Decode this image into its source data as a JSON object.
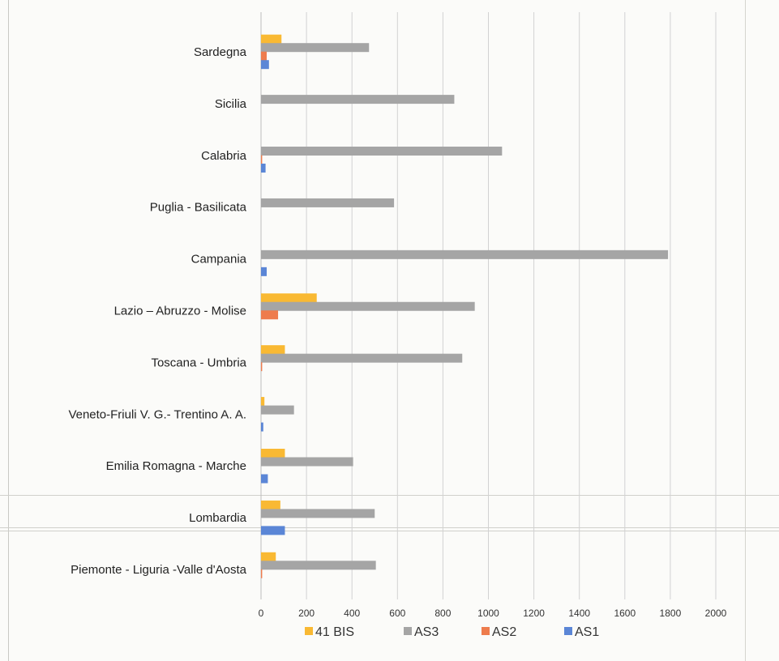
{
  "chart_data": {
    "type": "bar",
    "orientation": "horizontal",
    "categories": [
      "Sardegna",
      "Sicilia",
      "Calabria",
      "Puglia - Basilicata",
      "Campania",
      "Lazio – Abruzzo - Molise",
      "Toscana - Umbria",
      "Veneto-Friuli V. G.- Trentino A. A.",
      "Emilia Romagna - Marche",
      "Lombardia",
      "Piemonte - Liguria -Valle d'Aosta"
    ],
    "series": [
      {
        "name": "41 BIS",
        "color": "#f9b933",
        "values": [
          90,
          0,
          0,
          0,
          0,
          245,
          105,
          15,
          105,
          85,
          65
        ]
      },
      {
        "name": "AS3",
        "color": "#a5a5a5",
        "values": [
          475,
          850,
          1060,
          585,
          1790,
          940,
          885,
          145,
          405,
          500,
          505
        ]
      },
      {
        "name": "AS2",
        "color": "#ee7c4d",
        "values": [
          25,
          0,
          5,
          0,
          0,
          75,
          5,
          0,
          0,
          0,
          5
        ]
      },
      {
        "name": "AS1",
        "color": "#5b86d6",
        "values": [
          35,
          0,
          20,
          0,
          25,
          0,
          0,
          10,
          30,
          105,
          0
        ]
      }
    ],
    "xticks": [
      "0",
      "200",
      "400",
      "600",
      "800",
      "1000",
      "1200",
      "1400",
      "1600",
      "1800",
      "2000"
    ],
    "xlim": [
      0,
      2000
    ],
    "title": "",
    "xlabel": "",
    "ylabel": "",
    "grid": "vertical",
    "legend_position": "bottom"
  }
}
